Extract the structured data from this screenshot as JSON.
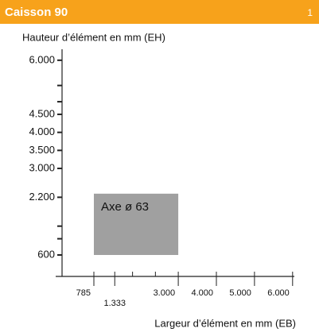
{
  "chart_data": {
    "type": "region",
    "title": "Caisson 90",
    "page_number": "1",
    "y_label": "Hauteur d’élément en mm (EH)",
    "x_label": "Largeur d’élément en mm (EB)",
    "yticks": [
      {
        "value": 6000,
        "label": "6.000"
      },
      {
        "value": 4500,
        "label": "4.500"
      },
      {
        "value": 4000,
        "label": "4.000"
      },
      {
        "value": 3500,
        "label": "3.500"
      },
      {
        "value": 3000,
        "label": "3.000"
      },
      {
        "value": 2200,
        "label": "2.200"
      },
      600
    ],
    "y_minor_ticks": [
      5300,
      4850,
      1400,
      1050
    ],
    "xticks": [
      785,
      {
        "value": 1333,
        "label": "1.333"
      },
      {
        "value": 3000,
        "label": "3.000"
      },
      {
        "value": 4000,
        "label": "4.000"
      },
      {
        "value": 5000,
        "label": "5.000"
      },
      {
        "value": 6000,
        "label": "6.000"
      }
    ],
    "x_minor_ticks": [
      1800,
      2400
    ],
    "regions": [
      {
        "name": "Axe ø 63",
        "x": [
          785,
          3000
        ],
        "y": [
          600,
          2300
        ],
        "color": "#a0a0a0"
      }
    ],
    "header_color": "#f7a21b"
  }
}
